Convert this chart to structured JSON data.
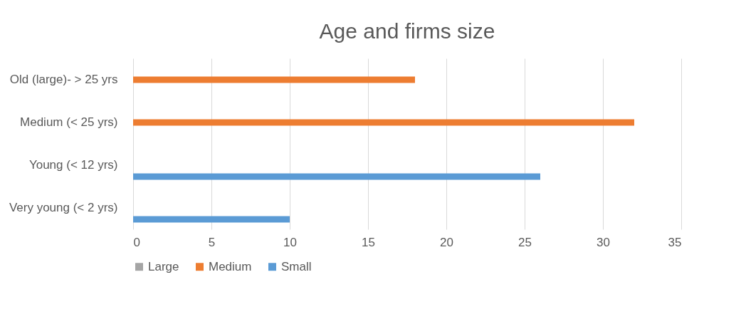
{
  "chart_data": {
    "type": "bar",
    "orientation": "horizontal",
    "title": "Age and firms size",
    "categories": [
      "Old (large)- > 25 yrs",
      "Medium (< 25 yrs)",
      "Young (< 12 yrs)",
      "Very young (< 2 yrs)"
    ],
    "series": [
      {
        "name": "Large",
        "color": "#a5a5a5",
        "values": [
          null,
          null,
          null,
          null
        ]
      },
      {
        "name": "Medium",
        "color": "#ed7d31",
        "values": [
          18,
          32,
          null,
          null
        ]
      },
      {
        "name": "Small",
        "color": "#5b9bd5",
        "values": [
          null,
          null,
          26,
          10
        ]
      }
    ],
    "xlim": [
      0,
      35
    ],
    "xticks": [
      0,
      5,
      10,
      15,
      20,
      25,
      30,
      35
    ],
    "grid": "x",
    "legend": "bottom"
  }
}
